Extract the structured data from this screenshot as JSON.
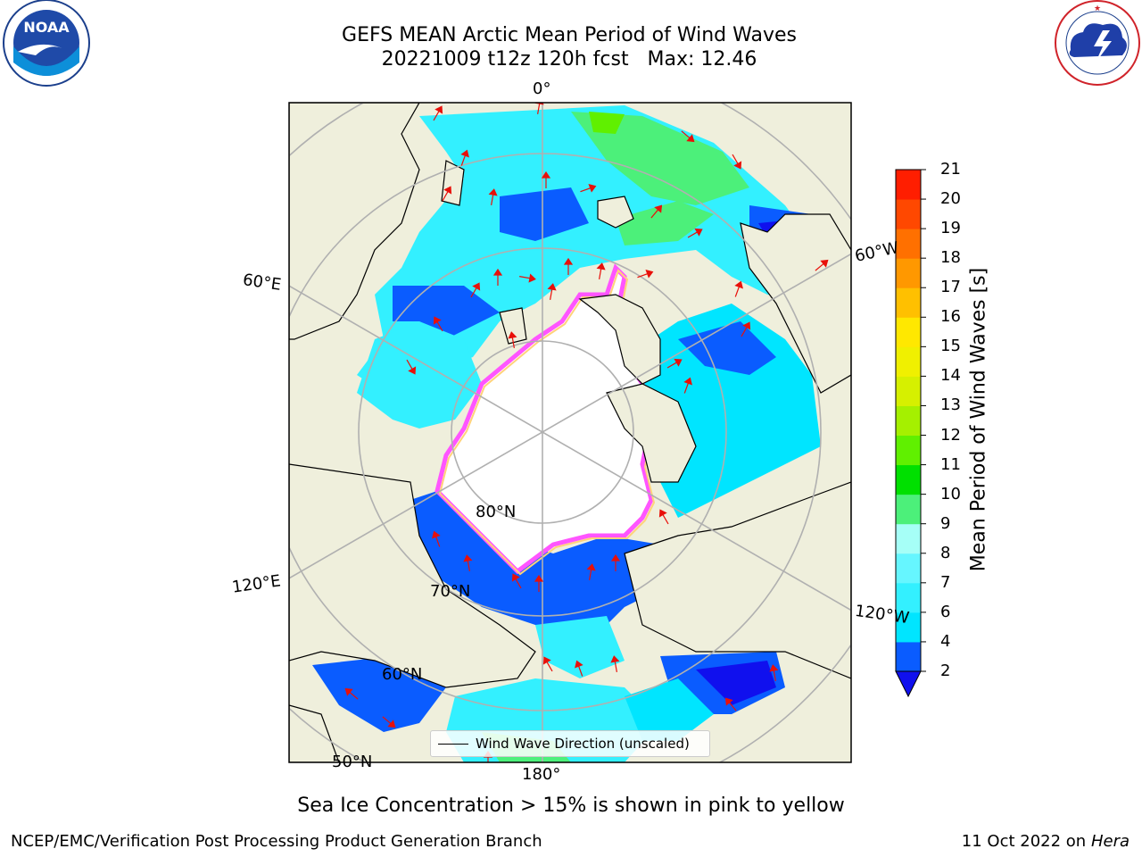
{
  "header": {
    "title_line1": "GEFS MEAN Arctic Mean Period of Wind Waves",
    "title_line2": "20221009 t12z 120h fcst   Max: 12.46"
  },
  "logos": {
    "noaa": {
      "icon": "noaa-logo-icon",
      "text": "NOAA",
      "ring_text": "NATIONAL OCEANIC AND ATMOSPHERIC ADMINISTRATION · U.S. DEPARTMENT OF COMMERCE"
    },
    "nws": {
      "icon": "nws-logo-icon",
      "ring_text": "NATIONAL WEATHER SERVICE"
    }
  },
  "map": {
    "projection": "north-polar-stereographic",
    "lon_labels": {
      "l0": "0°",
      "l60w": "60°W",
      "l60e": "60°E",
      "l120e": "120°E",
      "l120w": "120°W",
      "l180": "180°"
    },
    "lat_labels": {
      "l80": "80°N",
      "l70": "70°N",
      "l60": "60°N",
      "l50": "50°N"
    },
    "colors": {
      "land": "#efefdc",
      "ice_pink": "#ff55ff",
      "ice_yellow": "#ffd27a",
      "arrow": "#e8100a"
    },
    "legend_label": "Wind Wave Direction (unscaled)"
  },
  "colorbar": {
    "label": "Mean Period of Wind Waves [s]",
    "ticks": [
      "2",
      "4",
      "6",
      "7",
      "8",
      "9",
      "10",
      "11",
      "12",
      "13",
      "14",
      "15",
      "16",
      "17",
      "18",
      "19",
      "20",
      "21"
    ],
    "colors": [
      "#0a5cff",
      "#00e5ff",
      "#33f0ff",
      "#66f6ff",
      "#a6fff7",
      "#4cf07a",
      "#00e000",
      "#60f000",
      "#a5f000",
      "#d6f000",
      "#f0f000",
      "#ffe800",
      "#ffc000",
      "#ff9800",
      "#ff7000",
      "#ff4800",
      "#ff1e00"
    ],
    "under_color": "#1010ee"
  },
  "caption": "Sea Ice Concentration > 15% is shown in pink to yellow",
  "footer": {
    "left": "NCEP/EMC/Verification Post Processing Product Generation Branch",
    "right_prefix": "11 Oct 2022 on ",
    "right_host": "Hera"
  }
}
